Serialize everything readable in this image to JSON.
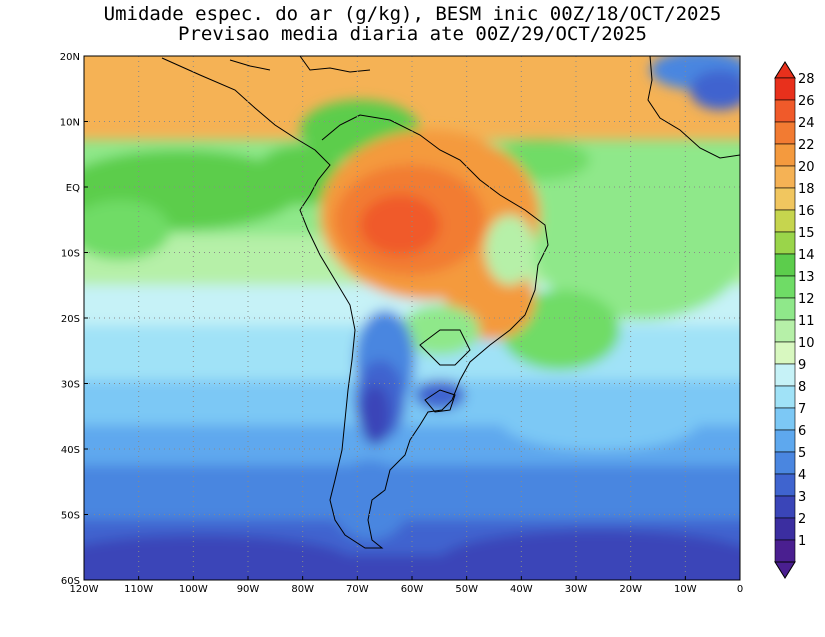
{
  "title": {
    "line1": "Umidade espec. do ar (g/kg), BESM inic 00Z/18/OCT/2025",
    "line2": "Previsao media diaria ate 00Z/29/OCT/2025"
  },
  "map": {
    "lon_range": [
      -120,
      0
    ],
    "lat_range": [
      -60,
      20
    ],
    "lon_ticks": [
      {
        "value": -120,
        "label": "120W"
      },
      {
        "value": -110,
        "label": "110W"
      },
      {
        "value": -100,
        "label": "100W"
      },
      {
        "value": -90,
        "label": "90W"
      },
      {
        "value": -80,
        "label": "80W"
      },
      {
        "value": -70,
        "label": "70W"
      },
      {
        "value": -60,
        "label": "60W"
      },
      {
        "value": -50,
        "label": "50W"
      },
      {
        "value": -40,
        "label": "40W"
      },
      {
        "value": -30,
        "label": "30W"
      },
      {
        "value": -20,
        "label": "20W"
      },
      {
        "value": -10,
        "label": "10W"
      },
      {
        "value": 0,
        "label": "0"
      }
    ],
    "lat_ticks": [
      {
        "value": 20,
        "label": "20N"
      },
      {
        "value": 10,
        "label": "10N"
      },
      {
        "value": 0,
        "label": "EQ"
      },
      {
        "value": -10,
        "label": "10S"
      },
      {
        "value": -20,
        "label": "20S"
      },
      {
        "value": -30,
        "label": "30S"
      },
      {
        "value": -40,
        "label": "40S"
      },
      {
        "value": -50,
        "label": "50S"
      },
      {
        "value": -60,
        "label": "60S"
      }
    ],
    "grid": "dotted"
  },
  "colorbar": {
    "levels": [
      {
        "label": "28",
        "color": "#e8301c"
      },
      {
        "label": "26",
        "color": "#f05a2a"
      },
      {
        "label": "24",
        "color": "#f27b32"
      },
      {
        "label": "22",
        "color": "#f49a3e"
      },
      {
        "label": "20",
        "color": "#f5b255"
      },
      {
        "label": "18",
        "color": "#f1c65f"
      },
      {
        "label": "16",
        "color": "#c6d54e"
      },
      {
        "label": "15",
        "color": "#9ad54a"
      },
      {
        "label": "14",
        "color": "#5ccd4c"
      },
      {
        "label": "13",
        "color": "#6fdc66"
      },
      {
        "label": "12",
        "color": "#8fe88a"
      },
      {
        "label": "11",
        "color": "#b6f0a8"
      },
      {
        "label": "10",
        "color": "#d8f8c0"
      },
      {
        "label": "9",
        "color": "#c6f2f7"
      },
      {
        "label": "8",
        "color": "#a0e2f7"
      },
      {
        "label": "7",
        "color": "#7cc8f5"
      },
      {
        "label": "6",
        "color": "#5ea8ee"
      },
      {
        "label": "5",
        "color": "#4a86e0"
      },
      {
        "label": "4",
        "color": "#3f64cf"
      },
      {
        "label": "3",
        "color": "#3a45b8"
      },
      {
        "label": "2",
        "color": "#3b2ea0"
      },
      {
        "label": "1",
        "color": "#4a1f90"
      }
    ],
    "top_arrow_color": "#e8301c",
    "bottom_arrow_color": "#4a1f90"
  }
}
